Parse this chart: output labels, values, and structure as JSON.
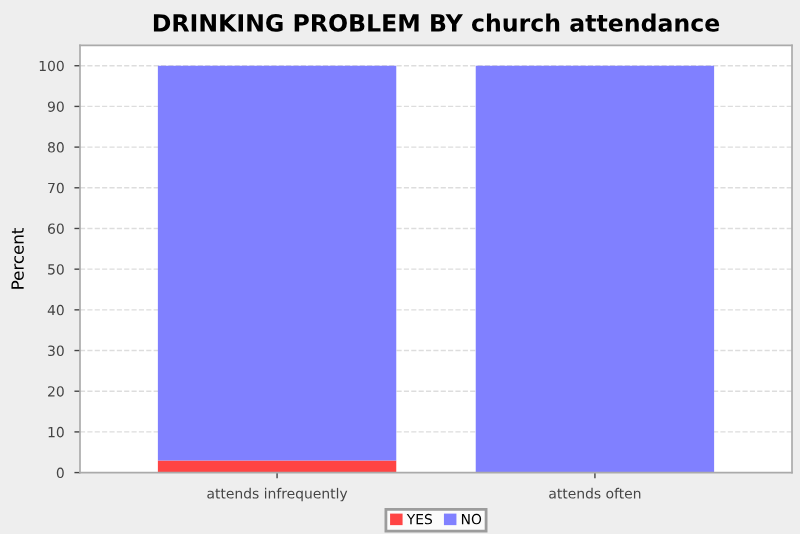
{
  "chart_data": {
    "type": "bar",
    "title": "DRINKING PROBLEM BY church attendance",
    "ylabel": "Percent",
    "categories": [
      "attends infrequently",
      "attends often"
    ],
    "stacked": true,
    "series": [
      {
        "name": "YES",
        "color": "#ff4444",
        "values": [
          3,
          0
        ]
      },
      {
        "name": "NO",
        "color": "#8080ff",
        "values": [
          97,
          100
        ]
      }
    ],
    "ylim": [
      0,
      105
    ],
    "yticks": [
      0,
      10,
      20,
      30,
      40,
      50,
      60,
      70,
      80,
      90,
      100
    ],
    "grid": "y",
    "legend": "bottom"
  }
}
